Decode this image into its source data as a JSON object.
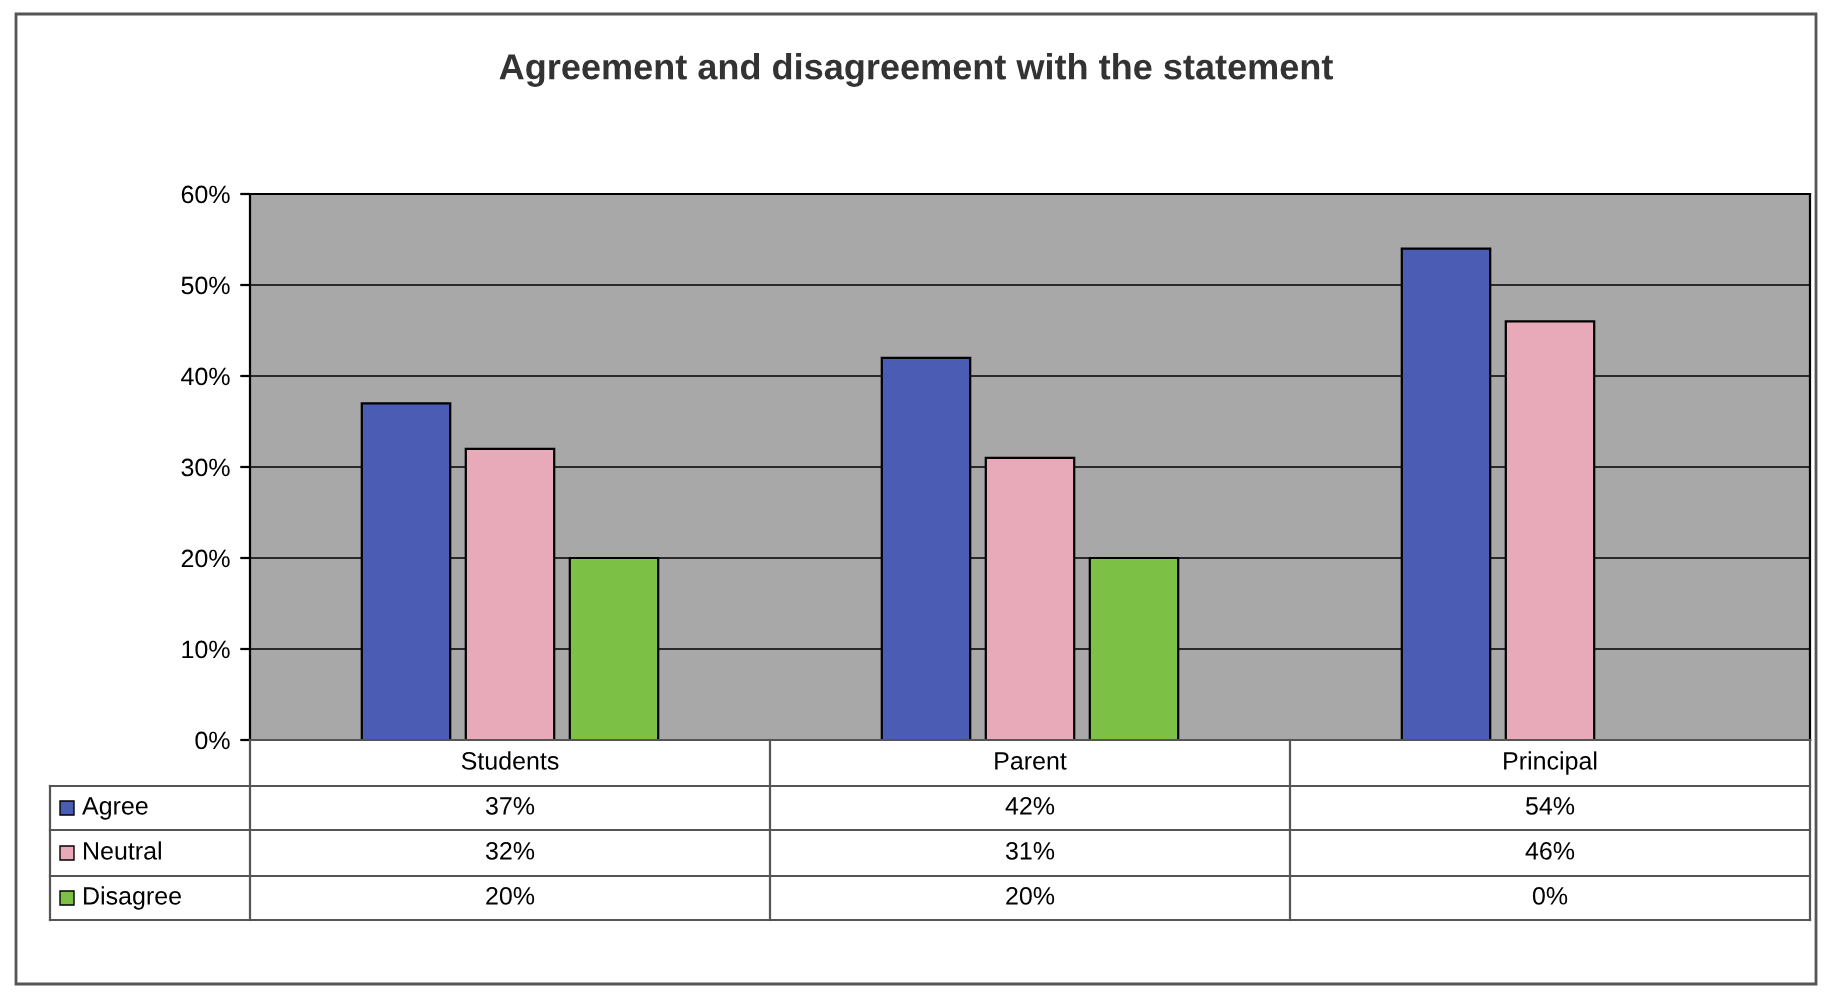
{
  "chart_data": {
    "type": "bar",
    "title": "Agreement and disagreement with the statement",
    "categories": [
      "Students",
      "Parent",
      "Principal"
    ],
    "series": [
      {
        "name": "Agree",
        "color": "#4a5cb4",
        "values": [
          37,
          42,
          54
        ]
      },
      {
        "name": "Neutral",
        "color": "#e8a9b9",
        "values": [
          32,
          31,
          46
        ]
      },
      {
        "name": "Disagree",
        "color": "#7cc046",
        "values": [
          20,
          20,
          0
        ]
      }
    ],
    "value_labels": [
      [
        "37%",
        "42%",
        "54%"
      ],
      [
        "32%",
        "31%",
        "46%"
      ],
      [
        "20%",
        "20%",
        "0%"
      ]
    ],
    "ylim": [
      0,
      60
    ],
    "yticks": [
      {
        "value": 0,
        "label": "0%"
      },
      {
        "value": 10,
        "label": "10%"
      },
      {
        "value": 20,
        "label": "20%"
      },
      {
        "value": 30,
        "label": "30%"
      },
      {
        "value": 40,
        "label": "40%"
      },
      {
        "value": 50,
        "label": "50%"
      },
      {
        "value": 60,
        "label": "60%"
      }
    ],
    "grid": "y",
    "legend": "bottom"
  }
}
